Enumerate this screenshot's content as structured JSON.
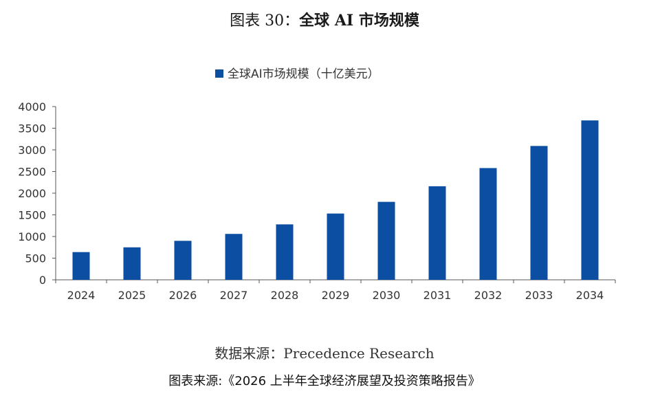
{
  "figure": {
    "label": "图表 30：",
    "title": "全球 AI 市场规模"
  },
  "chart_data": {
    "type": "bar",
    "legend": "全球AI市场规模（十亿美元）",
    "legend_position": "top-center",
    "categories": [
      "2024",
      "2025",
      "2026",
      "2027",
      "2028",
      "2029",
      "2030",
      "2031",
      "2032",
      "2033",
      "2034"
    ],
    "series": [
      {
        "name": "全球AI市场规模（十亿美元）",
        "values": [
          640,
          750,
          900,
          1060,
          1280,
          1530,
          1800,
          2160,
          2580,
          3090,
          3680
        ],
        "color": "#0b4ea2"
      }
    ],
    "ylim": [
      0,
      4000
    ],
    "yticks": [
      0,
      500,
      1000,
      1500,
      2000,
      2500,
      3000,
      3500,
      4000
    ],
    "grid": false
  },
  "source": "数据来源：Precedence Research",
  "from": "图表来源:《2026 上半年全球经济展望及投资策略报告》"
}
